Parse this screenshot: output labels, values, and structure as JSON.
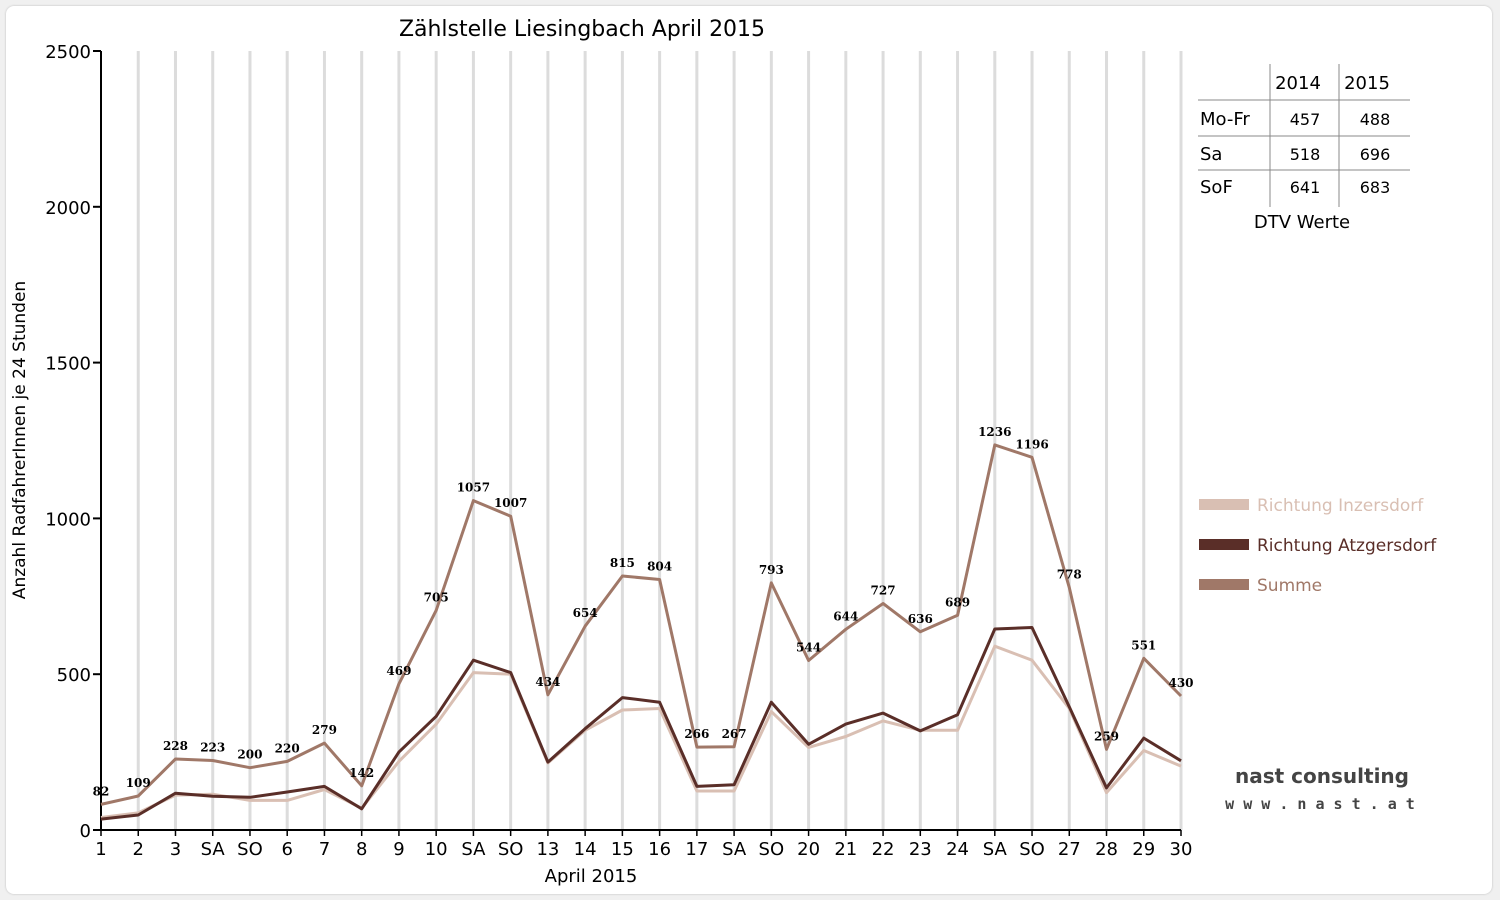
{
  "chart_data": {
    "type": "line",
    "title": "Zählstelle Liesingbach April 2015",
    "xlabel": "April 2015",
    "ylabel": "Anzahl RadfahrerInnen je 24 Stunden",
    "ylim": [
      0,
      2500
    ],
    "yticks": [
      "0",
      "500",
      "1000",
      "1500",
      "2000",
      "2500"
    ],
    "grid": "vertical",
    "legend_position": "right",
    "categories": [
      "1",
      "2",
      "3",
      "SA",
      "SO",
      "6",
      "7",
      "8",
      "9",
      "10",
      "SA",
      "SO",
      "13",
      "14",
      "15",
      "16",
      "17",
      "SA",
      "SO",
      "20",
      "21",
      "22",
      "23",
      "24",
      "SA",
      "SO",
      "27",
      "28",
      "29",
      "30"
    ],
    "category_colors": [
      "#000000",
      "#000000",
      "#000000",
      "#000000",
      "#e00000",
      "#e00000",
      "#000000",
      "#000000",
      "#000000",
      "#000000",
      "#000000",
      "#e00000",
      "#000000",
      "#000000",
      "#000000",
      "#000000",
      "#000000",
      "#000000",
      "#e00000",
      "#000000",
      "#000000",
      "#000000",
      "#000000",
      "#000000",
      "#000000",
      "#e00000",
      "#000000",
      "#000000",
      "#000000",
      "#000000"
    ],
    "series": [
      {
        "name": "Richtung Inzersdorf",
        "color": "#d9bfb3",
        "values": [
          40,
          55,
          112,
          115,
          95,
          95,
          130,
          70,
          220,
          340,
          505,
          500,
          215,
          320,
          385,
          390,
          125,
          125,
          380,
          265,
          300,
          350,
          320,
          320,
          590,
          545,
          390,
          120,
          255,
          205
        ]
      },
      {
        "name": "Richtung Atzgersdorf",
        "color": "#5a2e28",
        "values": [
          35,
          48,
          118,
          108,
          105,
          122,
          140,
          68,
          250,
          365,
          545,
          505,
          218,
          325,
          425,
          410,
          140,
          145,
          410,
          275,
          340,
          375,
          318,
          370,
          645,
          650,
          395,
          135,
          295,
          222
        ]
      },
      {
        "name": "Summe",
        "color": "#a07868",
        "values": [
          82,
          109,
          228,
          223,
          200,
          220,
          279,
          142,
          469,
          705,
          1057,
          1007,
          434,
          654,
          815,
          804,
          266,
          267,
          793,
          544,
          644,
          727,
          636,
          689,
          1236,
          1196,
          778,
          259,
          551,
          430
        ]
      }
    ],
    "data_labels": [
      "82",
      "109",
      "228",
      "223",
      "200",
      "220",
      "279",
      "142",
      "469",
      "705",
      "1057",
      "1007",
      "434",
      "654",
      "815",
      "804",
      "266",
      "267",
      "793",
      "544",
      "644",
      "727",
      "636",
      "689",
      "1236",
      "1196",
      "778",
      "259",
      "551",
      "430"
    ]
  },
  "dtv_table": {
    "headers": [
      "",
      "2014",
      "2015"
    ],
    "rows": [
      {
        "label": "Mo-Fr",
        "v2014": "457",
        "v2015": "488"
      },
      {
        "label": "Sa",
        "v2014": "518",
        "v2015": "696"
      },
      {
        "label": "SoF",
        "v2014": "641",
        "v2015": "683"
      }
    ],
    "caption": "DTV Werte"
  },
  "logo": {
    "line1": "nast consulting",
    "line2": "w w w . n a s t . a t",
    "accent": "#e00000"
  }
}
